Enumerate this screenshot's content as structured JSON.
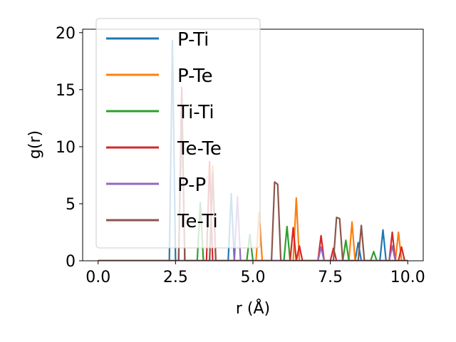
{
  "chart_data": {
    "type": "line",
    "xlabel": "r (Å)",
    "ylabel": "g(r)",
    "xlim": [
      -0.5,
      10.5
    ],
    "ylim": [
      0,
      20.3
    ],
    "xticks": [
      0.0,
      2.5,
      5.0,
      7.5,
      10.0
    ],
    "xtick_labels": [
      "0.0",
      "2.5",
      "5.0",
      "7.5",
      "10.0"
    ],
    "yticks": [
      0,
      5,
      10,
      15,
      20
    ],
    "ytick_labels": [
      "0",
      "5",
      "10",
      "15",
      "20"
    ],
    "grid": false,
    "legend": "upper-left",
    "series": [
      {
        "name": "P-Ti",
        "color": "#1f77b4",
        "x": [
          0,
          2.3,
          2.4,
          2.5,
          4.2,
          4.3,
          4.4,
          8.3,
          8.4,
          8.5,
          9.1,
          9.2,
          9.3,
          10
        ],
        "y": [
          0,
          0,
          19.3,
          0,
          0,
          5.9,
          0,
          0,
          1.6,
          0,
          0,
          2.7,
          0,
          0
        ]
      },
      {
        "name": "P-Te",
        "color": "#ff7f0e",
        "x": [
          0,
          3.6,
          3.7,
          3.8,
          5.1,
          5.2,
          5.3,
          6.3,
          6.4,
          6.5,
          8.1,
          8.2,
          8.3,
          9.6,
          9.7,
          9.8,
          10
        ],
        "y": [
          0,
          0,
          8.3,
          0,
          0,
          4.2,
          0,
          0,
          5.5,
          0,
          0,
          3.4,
          0,
          0,
          2.5,
          0,
          0
        ]
      },
      {
        "name": "Ti-Ti",
        "color": "#2ca02c",
        "x": [
          0,
          3.2,
          3.3,
          3.4,
          4.8,
          4.9,
          5.0,
          6.0,
          6.1,
          6.2,
          7.9,
          8.0,
          8.1,
          8.8,
          8.9,
          9.0,
          10
        ],
        "y": [
          0,
          0,
          5.1,
          0,
          0,
          2.3,
          0,
          0,
          3.0,
          0,
          0,
          1.8,
          0,
          0,
          0.8,
          0,
          0
        ]
      },
      {
        "name": "Te-Te",
        "color": "#d62728",
        "x": [
          0,
          2.6,
          2.7,
          2.8,
          3.5,
          3.6,
          3.7,
          6.2,
          6.3,
          6.4,
          6.5,
          6.6,
          7.1,
          7.2,
          7.3,
          7.5,
          7.6,
          7.7,
          9.4,
          9.5,
          9.6,
          9.7,
          9.8,
          9.9,
          10
        ],
        "y": [
          0,
          0,
          15.2,
          0,
          0,
          8.7,
          0,
          0,
          2.9,
          0,
          1.3,
          0,
          0,
          2.2,
          0,
          0,
          1.1,
          0,
          0,
          2.5,
          0,
          0,
          1.2,
          0,
          0
        ]
      },
      {
        "name": "P-P",
        "color": "#9467bd",
        "x": [
          0,
          4.4,
          4.5,
          4.6,
          7.1,
          7.2,
          7.3,
          9.4,
          9.5,
          9.6,
          10
        ],
        "y": [
          0,
          0,
          5.6,
          0,
          0,
          1.2,
          0,
          0,
          1.3,
          0,
          0
        ]
      },
      {
        "name": "Te-Ti",
        "color": "#8c564b",
        "x": [
          0,
          2.6,
          2.7,
          2.8,
          3.6,
          3.7,
          3.8,
          5.6,
          5.7,
          5.8,
          5.9,
          7.6,
          7.7,
          7.8,
          7.9,
          8.4,
          8.5,
          8.6,
          10
        ],
        "y": [
          0,
          0,
          13.2,
          0,
          0,
          7.7,
          0,
          0,
          6.9,
          6.7,
          0,
          0,
          3.8,
          3.7,
          0,
          0,
          3.1,
          0,
          0
        ]
      }
    ]
  }
}
